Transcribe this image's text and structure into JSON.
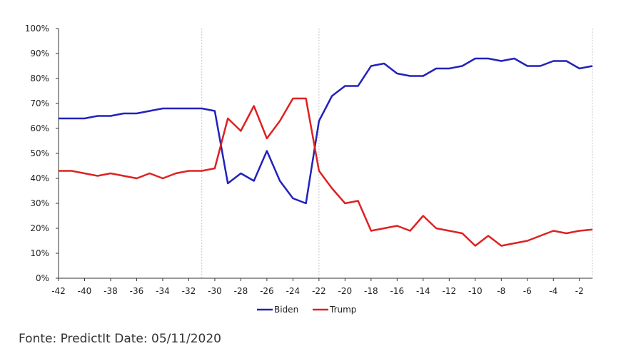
{
  "chart_data": {
    "type": "line",
    "x_ticks": [
      -42,
      -40,
      -38,
      -36,
      -34,
      -32,
      -30,
      -28,
      -26,
      -24,
      -22,
      -20,
      -18,
      -16,
      -14,
      -12,
      -10,
      -8,
      -6,
      -4,
      -2
    ],
    "x_tick_labels": [
      "-42",
      "-40",
      "-38",
      "-36",
      "-34",
      "-32",
      "-30",
      "-28",
      "-26",
      "-24",
      "-22",
      "-20",
      "-18",
      "-16",
      "-14",
      "-12",
      "-10",
      "-8",
      "-6",
      "-4",
      "-2"
    ],
    "y_tick_labels": [
      "0%",
      "10%",
      "20%",
      "30%",
      "40%",
      "50%",
      "60%",
      "70%",
      "80%",
      "90%",
      "100%"
    ],
    "xlim": [
      -42,
      -1
    ],
    "ylim": [
      0,
      100
    ],
    "reference_lines_x": [
      -31,
      -22,
      -1
    ],
    "legend_position": "bottom-center",
    "x": [
      -42,
      -41,
      -40,
      -39,
      -38,
      -37,
      -36,
      -35,
      -34,
      -33,
      -32,
      -31,
      -30,
      -29,
      -28,
      -27,
      -26,
      -25,
      -24,
      -23,
      -22,
      -21,
      -20,
      -19,
      -18,
      -17,
      -16,
      -15,
      -14,
      -13,
      -12,
      -11,
      -10,
      -9,
      -8,
      -7,
      -6,
      -5,
      -4,
      -3,
      -2,
      -1
    ],
    "series": [
      {
        "name": "Biden",
        "color": "#2222bb",
        "values": [
          64,
          64,
          64,
          65,
          65,
          66,
          66,
          67,
          68,
          68,
          68,
          68,
          67,
          38,
          42,
          39,
          51,
          39,
          32,
          30,
          63,
          73,
          77,
          77,
          85,
          86,
          82,
          81,
          81,
          84,
          84,
          85,
          88,
          88,
          87,
          88,
          85,
          85,
          87,
          87,
          84,
          85
        ]
      },
      {
        "name": "Trump",
        "color": "#dd2222",
        "values": [
          43,
          43,
          42,
          41,
          42,
          41,
          40,
          42,
          40,
          42,
          43,
          43,
          44,
          64,
          59,
          69,
          56,
          63,
          72,
          72,
          43,
          36,
          30,
          31,
          19,
          20,
          21,
          19,
          25,
          20,
          19,
          18,
          13,
          17,
          13,
          14,
          15,
          17,
          19,
          18,
          19,
          19.5
        ]
      }
    ]
  },
  "source_note": "Fonte: PredictIt Date: 05/11/2020"
}
